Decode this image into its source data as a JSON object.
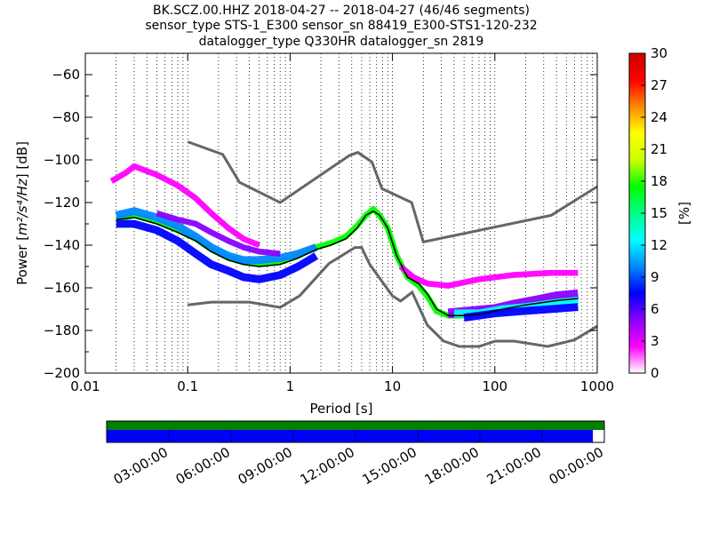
{
  "chart_data": {
    "type": "heatmap",
    "title_lines": [
      "BK.SCZ.00.HHZ   2018-04-27 -- 2018-04-27  (46/46 segments)",
      "sensor_type STS-1_E300 sensor_sn 88419_E300-STS1-120-232",
      "datalogger_type Q330HR datalogger_sn 2819"
    ],
    "xlabel": "Period [s]",
    "ylabel": {
      "prefix": "Power [",
      "math": "m²/s⁴/Hz",
      "suffix": "] [dB]"
    },
    "x_scale": "log",
    "xlim": [
      0.01,
      1000
    ],
    "ylim": [
      -200,
      -50
    ],
    "x_ticks": [
      {
        "value": 0.01,
        "label": "0.01"
      },
      {
        "value": 0.1,
        "label": "0.1"
      },
      {
        "value": 1,
        "label": "1"
      },
      {
        "value": 10,
        "label": "10"
      },
      {
        "value": 100,
        "label": "100"
      },
      {
        "value": 1000,
        "label": "1000"
      }
    ],
    "y_ticks": [
      {
        "value": -60,
        "label": "−60"
      },
      {
        "value": -80,
        "label": "−80"
      },
      {
        "value": -100,
        "label": "−100"
      },
      {
        "value": -120,
        "label": "−120"
      },
      {
        "value": -140,
        "label": "−140"
      },
      {
        "value": -160,
        "label": "−160"
      },
      {
        "value": -180,
        "label": "−180"
      },
      {
        "value": -200,
        "label": "−200"
      }
    ],
    "grid": "dotted vertical",
    "colorbar": {
      "label": "[%]",
      "range": [
        0,
        30
      ],
      "ticks": [
        {
          "value": 0,
          "label": "0"
        },
        {
          "value": 3,
          "label": "3"
        },
        {
          "value": 6,
          "label": "6"
        },
        {
          "value": 9,
          "label": "9"
        },
        {
          "value": 12,
          "label": "12"
        },
        {
          "value": 15,
          "label": "15"
        },
        {
          "value": 18,
          "label": "18"
        },
        {
          "value": 21,
          "label": "21"
        },
        {
          "value": 24,
          "label": "24"
        },
        {
          "value": 27,
          "label": "27"
        },
        {
          "value": 30,
          "label": "30"
        }
      ],
      "colormap": [
        "#ffffff",
        "#ff00ff",
        "#8800ff",
        "#0000ff",
        "#0088ff",
        "#00ffff",
        "#00ff88",
        "#00ff00",
        "#ccff00",
        "#ffff00",
        "#ff8800",
        "#ff0000",
        "#cc0000"
      ]
    },
    "noise_models": [
      {
        "name": "NHNM",
        "color": "#666666",
        "points": [
          [
            0.1,
            -91.5
          ],
          [
            0.22,
            -97.4
          ],
          [
            0.32,
            -110.5
          ],
          [
            0.8,
            -120
          ],
          [
            3.8,
            -97.9
          ],
          [
            4.6,
            -96.5
          ],
          [
            6.3,
            -101
          ],
          [
            7.9,
            -113.5
          ],
          [
            15.4,
            -120
          ],
          [
            20,
            -138.5
          ],
          [
            354.8,
            -126
          ],
          [
            1000,
            -112.5
          ]
        ]
      },
      {
        "name": "NLNM",
        "color": "#666666",
        "points": [
          [
            0.1,
            -168
          ],
          [
            0.17,
            -166.7
          ],
          [
            0.4,
            -166.7
          ],
          [
            0.8,
            -169.2
          ],
          [
            1.24,
            -163.7
          ],
          [
            2.4,
            -148.6
          ],
          [
            4.3,
            -141.1
          ],
          [
            5,
            -141.1
          ],
          [
            6,
            -149
          ],
          [
            10,
            -163.8
          ],
          [
            12,
            -166.2
          ],
          [
            15.6,
            -162.1
          ],
          [
            21.9,
            -177.5
          ],
          [
            31.6,
            -185
          ],
          [
            45,
            -187.5
          ],
          [
            70,
            -187.5
          ],
          [
            101,
            -185
          ],
          [
            154,
            -185
          ],
          [
            328,
            -187.5
          ],
          [
            600,
            -184.4
          ],
          [
            1000,
            -178
          ]
        ]
      }
    ],
    "mode_curve": {
      "color": "#000000",
      "points": [
        [
          0.02,
          -128
        ],
        [
          0.03,
          -127
        ],
        [
          0.05,
          -130
        ],
        [
          0.08,
          -134
        ],
        [
          0.12,
          -138
        ],
        [
          0.17,
          -143
        ],
        [
          0.25,
          -147
        ],
        [
          0.35,
          -149
        ],
        [
          0.5,
          -150
        ],
        [
          0.8,
          -149
        ],
        [
          1.2,
          -146
        ],
        [
          1.8,
          -142
        ],
        [
          2.5,
          -140
        ],
        [
          3.5,
          -137
        ],
        [
          4.5,
          -132
        ],
        [
          5.5,
          -126
        ],
        [
          6.5,
          -124
        ],
        [
          7.5,
          -126
        ],
        [
          9,
          -132
        ],
        [
          11,
          -145
        ],
        [
          14,
          -155
        ],
        [
          18,
          -158
        ],
        [
          22,
          -163
        ],
        [
          27,
          -170
        ],
        [
          35,
          -173
        ],
        [
          50,
          -173
        ],
        [
          80,
          -172
        ],
        [
          120,
          -170
        ],
        [
          200,
          -168
        ],
        [
          400,
          -166
        ],
        [
          650,
          -165
        ]
      ]
    },
    "density_bands": [
      {
        "name": "core",
        "pct": 17,
        "width": 3,
        "points": [
          [
            0.02,
            -128
          ],
          [
            0.03,
            -126
          ],
          [
            0.05,
            -129
          ],
          [
            0.08,
            -133
          ],
          [
            0.12,
            -137
          ],
          [
            0.17,
            -142
          ],
          [
            0.25,
            -146
          ],
          [
            0.35,
            -148
          ],
          [
            0.5,
            -149
          ],
          [
            0.8,
            -148
          ],
          [
            1.2,
            -145
          ],
          [
            1.8,
            -141
          ],
          [
            2.5,
            -139
          ],
          [
            3.5,
            -136
          ],
          [
            4.5,
            -131
          ],
          [
            5.5,
            -126
          ],
          [
            6.5,
            -123
          ],
          [
            7.5,
            -126
          ],
          [
            9,
            -132
          ],
          [
            11,
            -145
          ],
          [
            14,
            -155
          ],
          [
            18,
            -159
          ],
          [
            22,
            -164
          ],
          [
            27,
            -171
          ],
          [
            35,
            -173
          ],
          [
            50,
            -173
          ],
          [
            80,
            -172
          ],
          [
            120,
            -170
          ],
          [
            200,
            -168
          ],
          [
            400,
            -166
          ],
          [
            650,
            -165
          ]
        ]
      },
      {
        "name": "upper-band",
        "pct": 10,
        "width": 4,
        "points": [
          [
            0.02,
            -126
          ],
          [
            0.03,
            -124
          ],
          [
            0.05,
            -127
          ],
          [
            0.08,
            -131
          ],
          [
            0.12,
            -136
          ],
          [
            0.17,
            -141
          ],
          [
            0.25,
            -145
          ],
          [
            0.35,
            -147
          ],
          [
            0.5,
            -147
          ],
          [
            0.8,
            -146
          ],
          [
            1.2,
            -144
          ],
          [
            1.8,
            -141
          ]
        ]
      },
      {
        "name": "lower-band",
        "pct": 7,
        "width": 4,
        "points": [
          [
            0.02,
            -130
          ],
          [
            0.03,
            -130
          ],
          [
            0.05,
            -133
          ],
          [
            0.08,
            -138
          ],
          [
            0.12,
            -144
          ],
          [
            0.17,
            -149
          ],
          [
            0.25,
            -152
          ],
          [
            0.35,
            -155
          ],
          [
            0.5,
            -156
          ],
          [
            0.8,
            -154
          ],
          [
            1.2,
            -150
          ],
          [
            1.8,
            -145
          ]
        ]
      },
      {
        "name": "upper-purple",
        "pct": 4,
        "width": 3,
        "points": [
          [
            0.05,
            -125
          ],
          [
            0.08,
            -128
          ],
          [
            0.12,
            -130
          ],
          [
            0.17,
            -134
          ],
          [
            0.25,
            -138
          ],
          [
            0.35,
            -141
          ],
          [
            0.5,
            -143
          ],
          [
            0.8,
            -144
          ]
        ]
      },
      {
        "name": "high-outlier",
        "pct": 2,
        "width": 3,
        "points": [
          [
            0.018,
            -110
          ],
          [
            0.025,
            -106
          ],
          [
            0.03,
            -103
          ],
          [
            0.05,
            -107
          ],
          [
            0.08,
            -112
          ],
          [
            0.12,
            -118
          ],
          [
            0.17,
            -125
          ],
          [
            0.25,
            -132
          ],
          [
            0.35,
            -137
          ],
          [
            0.5,
            -140
          ]
        ]
      },
      {
        "name": "long-period-upper",
        "pct": 2,
        "width": 3,
        "points": [
          [
            12,
            -150
          ],
          [
            16,
            -155
          ],
          [
            22,
            -158
          ],
          [
            35,
            -159
          ],
          [
            70,
            -156
          ],
          [
            150,
            -154
          ],
          [
            350,
            -153
          ],
          [
            650,
            -153
          ]
        ]
      },
      {
        "name": "long-period-band-a",
        "pct": 5,
        "width": 5,
        "points": [
          [
            35,
            -172
          ],
          [
            60,
            -171
          ],
          [
            100,
            -170
          ],
          [
            150,
            -168
          ],
          [
            250,
            -166
          ],
          [
            400,
            -164
          ],
          [
            650,
            -163
          ]
        ]
      },
      {
        "name": "long-period-band-b",
        "pct": 12,
        "width": 4,
        "points": [
          [
            40,
            -172
          ],
          [
            70,
            -172
          ],
          [
            120,
            -170
          ],
          [
            200,
            -169
          ],
          [
            400,
            -167
          ],
          [
            650,
            -166
          ]
        ]
      },
      {
        "name": "long-period-low",
        "pct": 8,
        "width": 4,
        "points": [
          [
            50,
            -174
          ],
          [
            100,
            -172
          ],
          [
            180,
            -171
          ],
          [
            350,
            -170
          ],
          [
            650,
            -169
          ]
        ]
      }
    ]
  },
  "time_bar": {
    "tick_labels": [
      "03:00:00",
      "06:00:00",
      "09:00:00",
      "12:00:00",
      "15:00:00",
      "18:00:00",
      "21:00:00",
      "00:00:00"
    ],
    "top_color": "#008000",
    "bottom_color": "#0000ff",
    "bottom_fill_fraction": 0.977
  }
}
